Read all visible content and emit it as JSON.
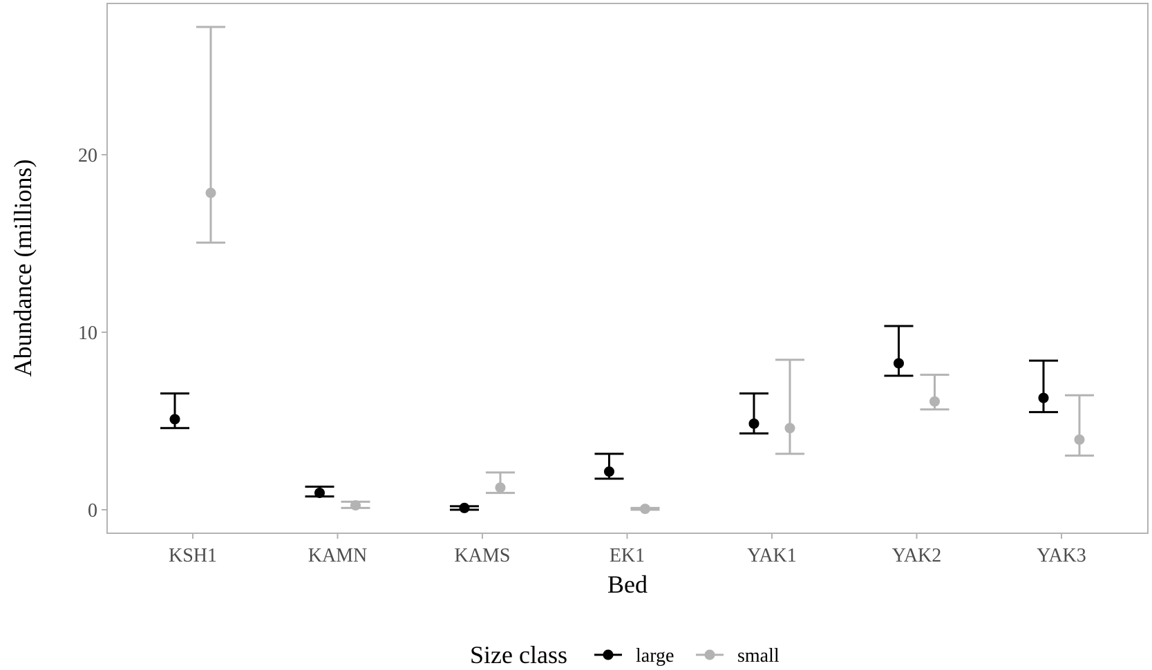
{
  "chart_data": {
    "type": "scatter",
    "subtype": "point-with-error-bars",
    "title": "",
    "xlabel": "Bed",
    "ylabel": "Abundance (millions)",
    "categories": [
      "KSH1",
      "KAMN",
      "KAMS",
      "EK1",
      "YAK1",
      "YAK2",
      "YAK3"
    ],
    "ylim": [
      -1.3,
      28.5
    ],
    "yticks": [
      0,
      10,
      20
    ],
    "grid": false,
    "legend": {
      "title": "Size class",
      "position": "bottom"
    },
    "series": [
      {
        "name": "large",
        "color": "#000000",
        "values": [
          5.1,
          0.95,
          0.1,
          2.15,
          4.85,
          8.25,
          6.3
        ],
        "lower": [
          4.6,
          0.75,
          0.0,
          1.75,
          4.3,
          7.55,
          5.5
        ],
        "upper": [
          6.55,
          1.3,
          0.2,
          3.15,
          6.55,
          10.35,
          8.4
        ]
      },
      {
        "name": "small",
        "color": "#b3b3b3",
        "values": [
          17.85,
          0.25,
          1.25,
          0.05,
          4.6,
          6.1,
          3.95
        ],
        "lower": [
          15.05,
          0.1,
          0.95,
          0.0,
          3.15,
          5.65,
          3.05
        ],
        "upper": [
          27.2,
          0.45,
          2.1,
          0.1,
          8.45,
          7.6,
          6.45
        ]
      }
    ]
  }
}
